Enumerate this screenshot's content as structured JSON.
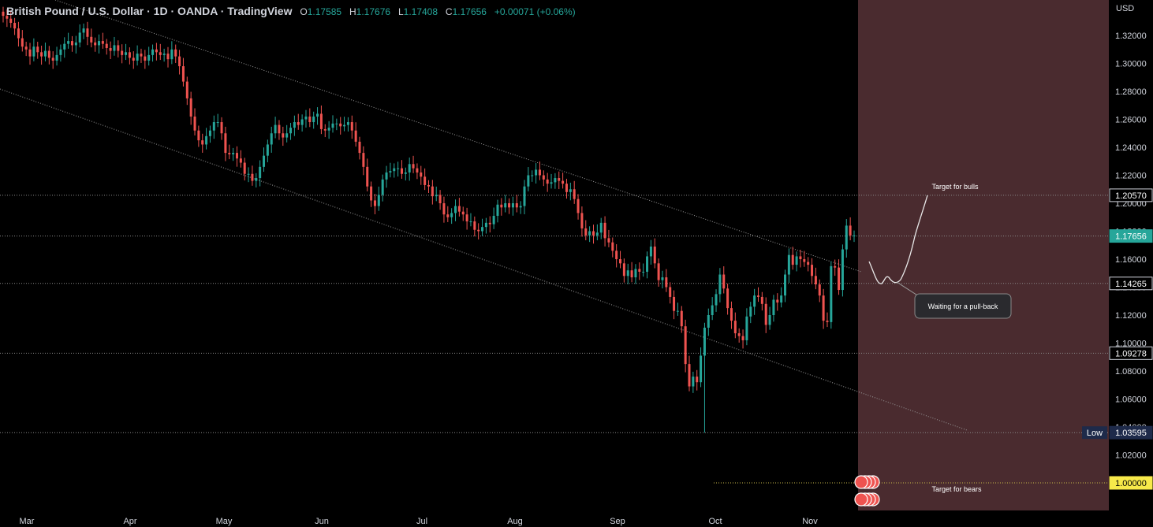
{
  "header": {
    "symbol_title": "British Pound / U.S. Dollar · 1D · OANDA · TradingView",
    "ohlc": [
      {
        "k": "O",
        "v": "1.17585"
      },
      {
        "k": "H",
        "v": "1.17676"
      },
      {
        "k": "L",
        "v": "1.17408"
      },
      {
        "k": "C",
        "v": "1.17656"
      }
    ],
    "change": "+0.00071 (+0.06%)"
  },
  "colors": {
    "up": "#26a69a",
    "down": "#ef5350",
    "zone": "#4a2b2f",
    "current_tag": "#26a69a",
    "target_tag": "#f7e94a",
    "low_tag": "#1e2a4a"
  },
  "annotations": {
    "bulls": "Target for bulls",
    "bears": "Target for bears",
    "pullback": "Waiting for a pull-back"
  },
  "chart_data": {
    "type": "candlestick",
    "currency": "USD",
    "y_ticks": [
      "1.32000",
      "1.30000",
      "1.28000",
      "1.26000",
      "1.24000",
      "1.22000",
      "1.20000",
      "1.18000",
      "1.16000",
      "1.14000",
      "1.12000",
      "1.10000",
      "1.08000",
      "1.06000",
      "1.04000",
      "1.02000"
    ],
    "ylim": [
      0.995,
      1.335
    ],
    "x_labels": [
      "Mar",
      "Apr",
      "May",
      "Jun",
      "Jul",
      "Aug",
      "Sep",
      "Oct",
      "Nov"
    ],
    "levels": [
      {
        "label": "1.20570",
        "value": 1.2057
      },
      {
        "label": "1.17656",
        "value": 1.17656,
        "current": true
      },
      {
        "label": "1.14265",
        "value": 1.14265
      },
      {
        "label": "1.09278",
        "value": 1.09278
      },
      {
        "label": "1.03595",
        "value": 1.03595,
        "low": true,
        "prefix": "Low"
      },
      {
        "label": "1.00000",
        "value": 1.0,
        "target": true
      }
    ],
    "closes": [
      1.334,
      1.332,
      1.329,
      1.325,
      1.318,
      1.312,
      1.31,
      1.305,
      1.312,
      1.308,
      1.305,
      1.309,
      1.304,
      1.302,
      1.306,
      1.31,
      1.314,
      1.316,
      1.313,
      1.315,
      1.322,
      1.325,
      1.319,
      1.315,
      1.313,
      1.316,
      1.314,
      1.311,
      1.309,
      1.313,
      1.309,
      1.306,
      1.308,
      1.304,
      1.302,
      1.307,
      1.305,
      1.302,
      1.306,
      1.31,
      1.308,
      1.306,
      1.307,
      1.303,
      1.31,
      1.305,
      1.298,
      1.287,
      1.275,
      1.262,
      1.252,
      1.245,
      1.242,
      1.248,
      1.252,
      1.258,
      1.258,
      1.25,
      1.236,
      1.235,
      1.236,
      1.232,
      1.229,
      1.221,
      1.221,
      1.216,
      1.218,
      1.226,
      1.234,
      1.242,
      1.25,
      1.256,
      1.25,
      1.247,
      1.25,
      1.254,
      1.258,
      1.256,
      1.26,
      1.262,
      1.258,
      1.262,
      1.264,
      1.253,
      1.252,
      1.254,
      1.257,
      1.257,
      1.255,
      1.256,
      1.258,
      1.252,
      1.244,
      1.236,
      1.226,
      1.212,
      1.202,
      1.198,
      1.206,
      1.217,
      1.222,
      1.223,
      1.225,
      1.225,
      1.221,
      1.222,
      1.228,
      1.225,
      1.222,
      1.219,
      1.213,
      1.212,
      1.205,
      1.206,
      1.2,
      1.192,
      1.19,
      1.193,
      1.198,
      1.194,
      1.192,
      1.187,
      1.187,
      1.181,
      1.18,
      1.183,
      1.186,
      1.185,
      1.191,
      1.199,
      1.197,
      1.2,
      1.197,
      1.2,
      1.197,
      1.198,
      1.212,
      1.22,
      1.22,
      1.224,
      1.22,
      1.217,
      1.214,
      1.215,
      1.218,
      1.216,
      1.214,
      1.208,
      1.21,
      1.203,
      1.193,
      1.182,
      1.177,
      1.18,
      1.177,
      1.179,
      1.186,
      1.175,
      1.172,
      1.166,
      1.16,
      1.157,
      1.148,
      1.152,
      1.147,
      1.153,
      1.151,
      1.151,
      1.162,
      1.169,
      1.157,
      1.145,
      1.147,
      1.14,
      1.133,
      1.123,
      1.123,
      1.112,
      1.085,
      1.069,
      1.076,
      1.072,
      1.091,
      1.111,
      1.12,
      1.127,
      1.135,
      1.149,
      1.139,
      1.125,
      1.116,
      1.107,
      1.105,
      1.102,
      1.119,
      1.126,
      1.134,
      1.133,
      1.128,
      1.113,
      1.12,
      1.131,
      1.129,
      1.134,
      1.149,
      1.163,
      1.156,
      1.162,
      1.16,
      1.158,
      1.156,
      1.148,
      1.142,
      1.134,
      1.116,
      1.115,
      1.155,
      1.154,
      1.138,
      1.167,
      1.184,
      1.177,
      1.177
    ]
  }
}
